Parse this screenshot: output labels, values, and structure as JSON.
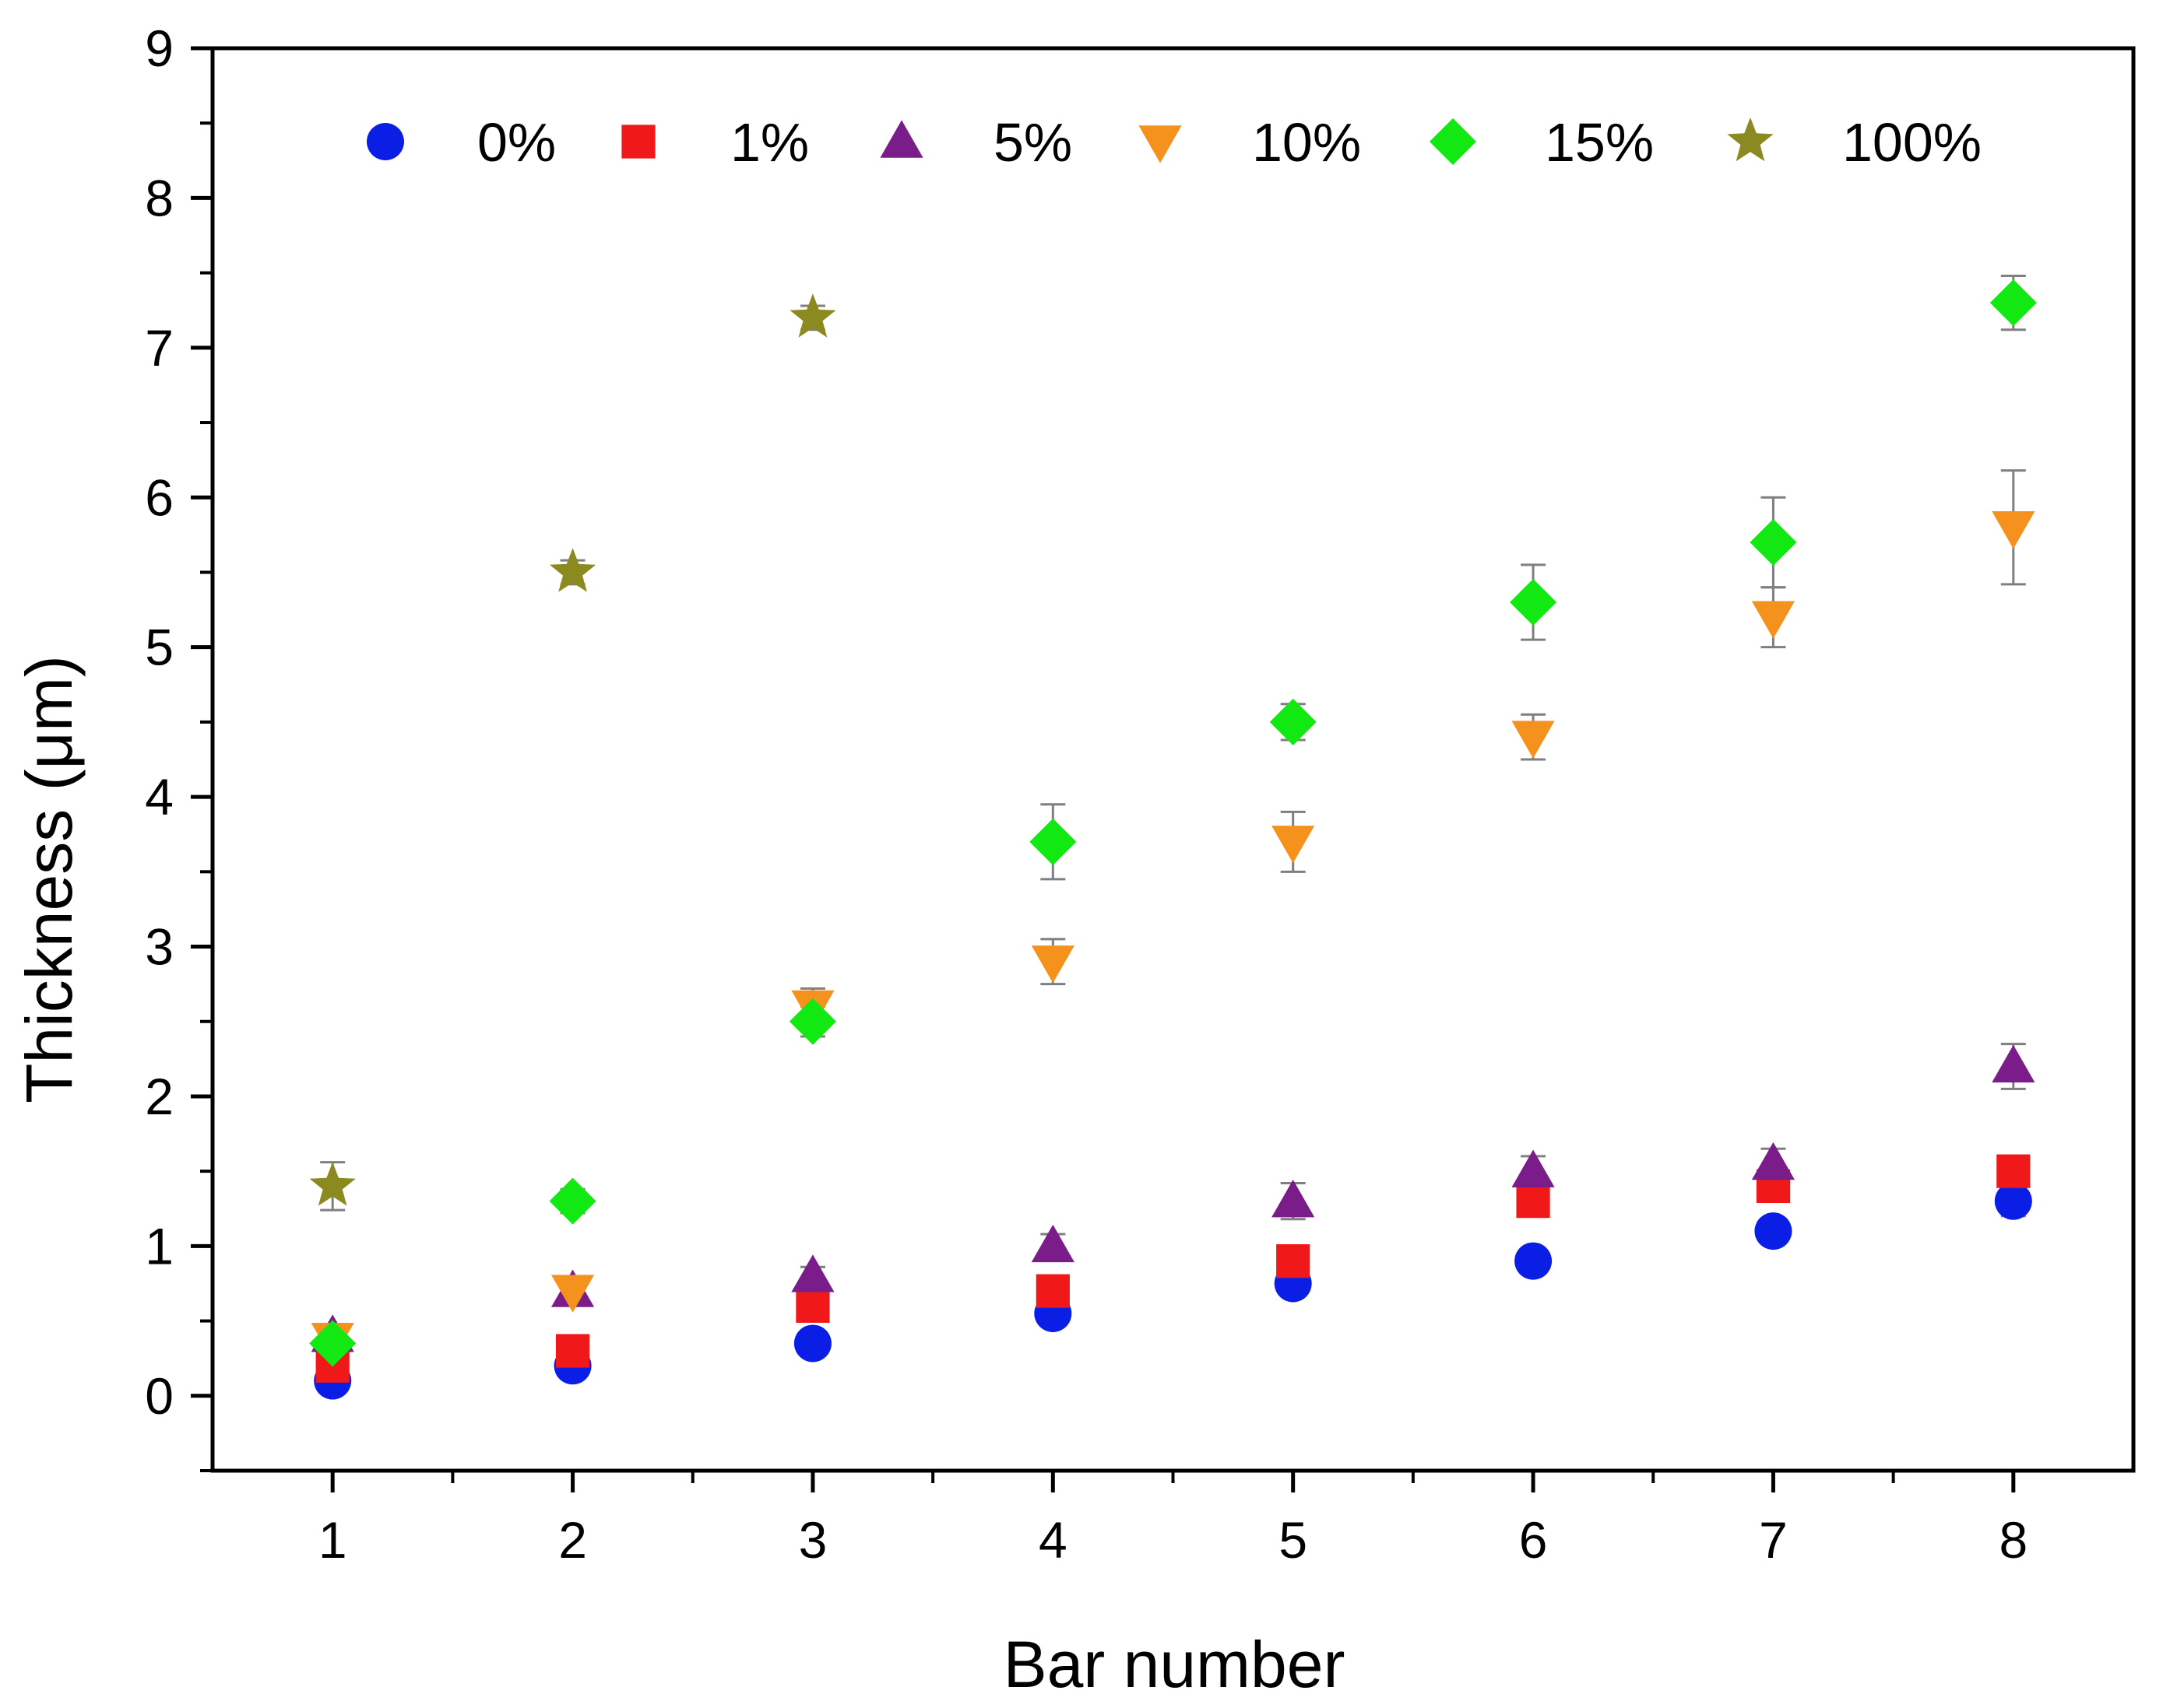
{
  "chart_data": {
    "type": "scatter",
    "title": "",
    "xlabel": "Bar number",
    "ylabel": "Thickness (μm)",
    "xlim": [
      0.5,
      8.5
    ],
    "ylim": [
      -0.5,
      9
    ],
    "xticks": [
      1,
      2,
      3,
      4,
      5,
      6,
      7,
      8
    ],
    "yticks": [
      0,
      1,
      2,
      3,
      4,
      5,
      6,
      7,
      8,
      9
    ],
    "grid": false,
    "legend": {
      "position": "top",
      "orientation": "horizontal",
      "frame": false
    },
    "series": [
      {
        "name": "0%",
        "marker": "circle",
        "color": "#0a1ee6",
        "x": [
          1,
          2,
          3,
          4,
          5,
          6,
          7,
          8
        ],
        "y": [
          0.1,
          0.2,
          0.35,
          0.55,
          0.75,
          0.9,
          1.1,
          1.3
        ],
        "err": [
          0.03,
          0.03,
          0.03,
          0.04,
          0.05,
          0.05,
          0.05,
          0.1
        ]
      },
      {
        "name": "1%",
        "marker": "square",
        "color": "#f01818",
        "x": [
          1,
          2,
          3,
          4,
          5,
          6,
          7,
          8
        ],
        "y": [
          0.2,
          0.3,
          0.6,
          0.7,
          0.9,
          1.3,
          1.4,
          1.5
        ],
        "err": [
          0.05,
          0.06,
          0.08,
          0.08,
          0.08,
          0.1,
          0.1,
          0.1
        ]
      },
      {
        "name": "5%",
        "marker": "triangle-up",
        "color": "#7a1c8a",
        "x": [
          1,
          2,
          3,
          4,
          5,
          6,
          7,
          8
        ],
        "y": [
          0.4,
          0.7,
          0.8,
          1.0,
          1.3,
          1.5,
          1.55,
          2.2
        ],
        "err": [
          0.05,
          0.06,
          0.06,
          0.08,
          0.12,
          0.1,
          0.1,
          0.15
        ]
      },
      {
        "name": "10%",
        "marker": "triangle-down",
        "color": "#f5921e",
        "x": [
          1,
          2,
          3,
          4,
          5,
          6,
          7,
          8
        ],
        "y": [
          0.38,
          0.7,
          2.6,
          2.9,
          3.7,
          4.4,
          5.2,
          5.8
        ],
        "err": [
          0.05,
          0.08,
          0.12,
          0.15,
          0.2,
          0.15,
          0.2,
          0.38
        ]
      },
      {
        "name": "15%",
        "marker": "diamond",
        "color": "#12e812",
        "x": [
          1,
          2,
          3,
          4,
          5,
          6,
          7,
          8
        ],
        "y": [
          0.35,
          1.3,
          2.5,
          3.7,
          4.5,
          5.3,
          5.7,
          7.3
        ],
        "err": [
          0.05,
          0.08,
          0.1,
          0.25,
          0.12,
          0.25,
          0.3,
          0.18
        ]
      },
      {
        "name": "100%",
        "marker": "star",
        "color": "#8b8a20",
        "x": [
          1,
          2,
          3
        ],
        "y": [
          1.4,
          5.5,
          7.2
        ],
        "err": [
          0.16,
          0.08,
          0.08
        ]
      }
    ]
  }
}
